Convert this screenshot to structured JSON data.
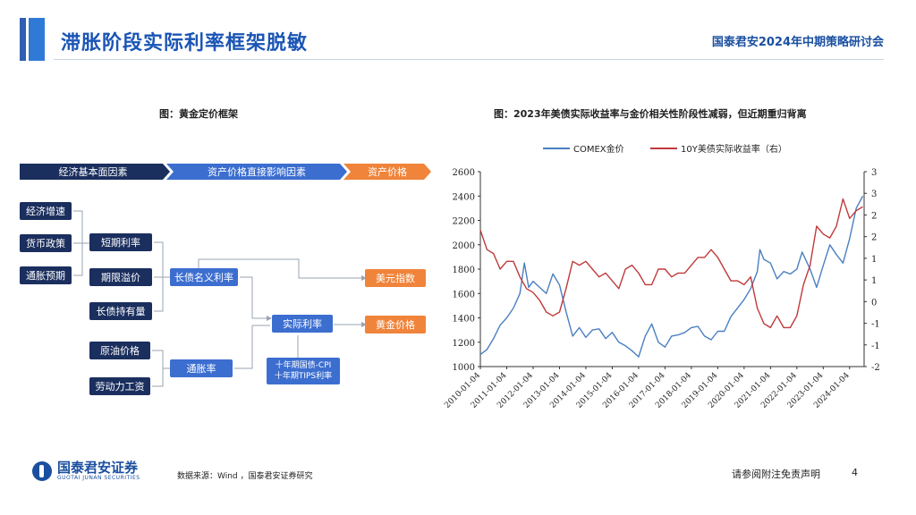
{
  "header": {
    "title": "滞胀阶段实际利率框架脱敏",
    "right": "国泰君安2024年中期策略研讨会"
  },
  "left_panel": {
    "caption": "图：黄金定价框架",
    "chevrons": [
      "经济基本面因素",
      "资产价格直接影响因素",
      "资产价格"
    ],
    "boxes": {
      "econ_growth": "经济增速",
      "monetary_policy": "货币政策",
      "inflation_exp": "通胀预期",
      "short_rate": "短期利率",
      "term_premium": "期限溢价",
      "long_bond_hold": "长债持有量",
      "oil_price": "原油价格",
      "labor_wage": "劳动力工资",
      "long_nominal": "长债名义利率",
      "inflation": "通胀率",
      "real_rate": "实际利率",
      "usd_index": "美元指数",
      "gold_price": "黄金价格",
      "real_rate_note": "十年期国债-CPI\n十年期TIPS利率"
    }
  },
  "footer": {
    "logo_text": "国泰君安证券",
    "logo_sub": "GUOTAI JUNAN SECURITIES",
    "source": "数据来源：Wind ，国泰君安证券研究",
    "disclaimer": "请参阅附注免责声明",
    "page": "4"
  },
  "colors": {
    "gold": "#4a7fc1",
    "yield": "#c0393b",
    "title": "#1a55b5"
  },
  "chart_data": {
    "type": "line",
    "title": "图：2023年美债实际收益率与金价相关性阶段性减弱，但近期重归背离",
    "x_tick_labels": [
      "2010-01-04",
      "2011-01-04",
      "2012-01-04",
      "2013-01-04",
      "2014-01-04",
      "2015-01-04",
      "2016-01-04",
      "2017-01-04",
      "2018-01-04",
      "2019-01-04",
      "2020-01-04",
      "2021-01-04",
      "2022-01-04",
      "2023-01-04",
      "2024-01-04"
    ],
    "y_left": {
      "ticks": [
        1000,
        1200,
        1400,
        1600,
        1800,
        2000,
        2200,
        2400,
        2600
      ],
      "ylim": [
        1000,
        2600
      ]
    },
    "y_right": {
      "tick_labels": [
        "-2",
        "-1",
        "-1",
        "0",
        "1",
        "1",
        "2",
        "2",
        "3",
        "3"
      ],
      "ylim": [
        -2,
        3
      ],
      "inverted": true
    },
    "series": [
      {
        "name": "COMEX金价",
        "axis": "left",
        "x": [
          2010.0,
          2010.25,
          2010.5,
          2010.75,
          2011.0,
          2011.25,
          2011.5,
          2011.67,
          2011.83,
          2012.0,
          2012.25,
          2012.5,
          2012.75,
          2013.0,
          2013.25,
          2013.5,
          2013.75,
          2014.0,
          2014.25,
          2014.5,
          2014.75,
          2015.0,
          2015.25,
          2015.5,
          2015.75,
          2016.0,
          2016.25,
          2016.5,
          2016.75,
          2017.0,
          2017.25,
          2017.5,
          2017.75,
          2018.0,
          2018.25,
          2018.5,
          2018.75,
          2019.0,
          2019.25,
          2019.5,
          2019.75,
          2020.0,
          2020.25,
          2020.5,
          2020.6,
          2020.75,
          2021.0,
          2021.25,
          2021.5,
          2021.75,
          2022.0,
          2022.2,
          2022.5,
          2022.75,
          2023.0,
          2023.25,
          2023.5,
          2023.75,
          2024.0,
          2024.25,
          2024.5
        ],
        "values": [
          1100,
          1140,
          1230,
          1340,
          1400,
          1480,
          1600,
          1850,
          1650,
          1700,
          1650,
          1600,
          1760,
          1670,
          1450,
          1250,
          1320,
          1240,
          1300,
          1310,
          1230,
          1280,
          1200,
          1170,
          1130,
          1080,
          1250,
          1350,
          1200,
          1160,
          1250,
          1260,
          1280,
          1320,
          1330,
          1250,
          1220,
          1290,
          1290,
          1410,
          1480,
          1550,
          1640,
          1780,
          1960,
          1880,
          1850,
          1720,
          1780,
          1760,
          1800,
          1940,
          1800,
          1650,
          1830,
          2000,
          1920,
          1850,
          2050,
          2300,
          2400
        ]
      },
      {
        "name": "10Y美债实际收益率（右）",
        "axis": "right",
        "x": [
          2010.0,
          2010.25,
          2010.5,
          2010.75,
          2011.0,
          2011.25,
          2011.5,
          2011.75,
          2012.0,
          2012.25,
          2012.5,
          2012.75,
          2013.0,
          2013.25,
          2013.5,
          2013.75,
          2014.0,
          2014.25,
          2014.5,
          2014.75,
          2015.0,
          2015.25,
          2015.5,
          2015.75,
          2016.0,
          2016.25,
          2016.5,
          2016.75,
          2017.0,
          2017.25,
          2017.5,
          2017.75,
          2018.0,
          2018.25,
          2018.5,
          2018.75,
          2019.0,
          2019.25,
          2019.5,
          2019.75,
          2020.0,
          2020.25,
          2020.5,
          2020.75,
          2021.0,
          2021.25,
          2021.5,
          2021.75,
          2022.0,
          2022.25,
          2022.5,
          2022.75,
          2023.0,
          2023.25,
          2023.5,
          2023.75,
          2024.0,
          2024.25,
          2024.5
        ],
        "values": [
          1.5,
          1.0,
          0.9,
          0.5,
          0.7,
          0.7,
          0.3,
          0.0,
          -0.1,
          -0.3,
          -0.6,
          -0.7,
          -0.6,
          0.0,
          0.7,
          0.6,
          0.7,
          0.5,
          0.3,
          0.4,
          0.2,
          0.0,
          0.5,
          0.6,
          0.4,
          0.1,
          0.1,
          0.5,
          0.5,
          0.3,
          0.4,
          0.4,
          0.6,
          0.8,
          0.8,
          1.0,
          0.8,
          0.5,
          0.2,
          0.2,
          0.1,
          0.3,
          -0.5,
          -0.9,
          -1.0,
          -0.7,
          -1.0,
          -1.0,
          -0.7,
          0.1,
          0.6,
          1.6,
          1.4,
          1.3,
          1.6,
          2.3,
          1.8,
          2.0,
          2.1
        ]
      }
    ]
  }
}
